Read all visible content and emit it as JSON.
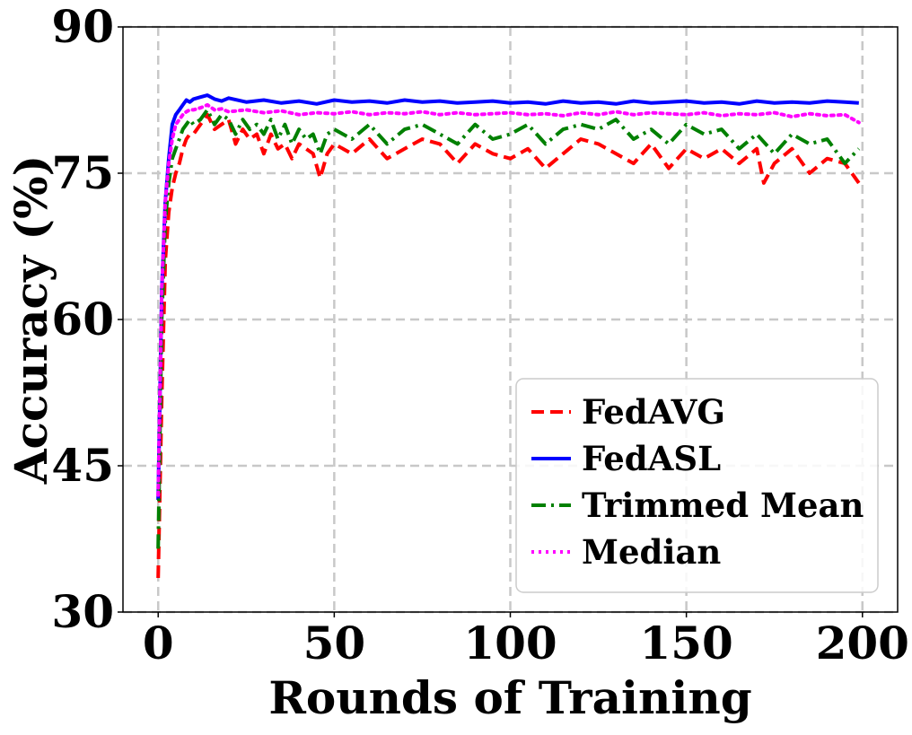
{
  "chart_data": {
    "type": "line",
    "xlabel": "Rounds of Training",
    "ylabel": "Accuracy (%)",
    "xlim": [
      -10,
      210
    ],
    "ylim": [
      30,
      90
    ],
    "xticks": [
      0,
      50,
      100,
      150,
      200
    ],
    "yticks": [
      30,
      45,
      60,
      75,
      90
    ],
    "xtick_labels": [
      "0",
      "50",
      "100",
      "150",
      "200"
    ],
    "ytick_labels": [
      "30",
      "45",
      "60",
      "75",
      "90"
    ],
    "grid": true,
    "legend_position": "lower-right",
    "series": [
      {
        "name": "FedAVG",
        "color": "#ff0000",
        "style": "dashed",
        "x": [
          0,
          1,
          2,
          3,
          4,
          5,
          6,
          7,
          8,
          9,
          10,
          12,
          14,
          16,
          18,
          20,
          22,
          24,
          26,
          28,
          30,
          32,
          34,
          36,
          38,
          40,
          42,
          44,
          46,
          48,
          50,
          55,
          60,
          65,
          70,
          75,
          80,
          85,
          90,
          95,
          100,
          105,
          110,
          115,
          120,
          125,
          130,
          135,
          140,
          145,
          150,
          155,
          160,
          165,
          170,
          172,
          175,
          180,
          185,
          190,
          195,
          199
        ],
        "y": [
          33.5,
          52,
          66,
          71,
          73.5,
          75,
          76,
          77.5,
          78.5,
          79,
          79,
          80,
          81,
          79.5,
          80,
          80.5,
          78,
          79.5,
          78.5,
          79,
          77,
          79,
          77.5,
          78,
          76.5,
          78,
          77.5,
          77,
          74.5,
          77,
          78,
          77,
          78.5,
          76.5,
          77.5,
          78.5,
          78,
          76,
          78,
          77,
          76.5,
          77.5,
          75.5,
          77,
          78.5,
          78,
          77,
          76,
          78,
          75.5,
          77.5,
          76.5,
          77.5,
          76,
          77.5,
          74,
          76,
          77.5,
          75,
          76.5,
          76,
          74
        ]
      },
      {
        "name": "FedASL",
        "color": "#0000ff",
        "style": "solid",
        "x": [
          0,
          1,
          2,
          3,
          4,
          5,
          6,
          7,
          8,
          9,
          10,
          12,
          14,
          16,
          18,
          20,
          25,
          30,
          35,
          40,
          45,
          50,
          55,
          60,
          65,
          70,
          75,
          80,
          85,
          90,
          95,
          100,
          105,
          110,
          115,
          120,
          125,
          130,
          135,
          140,
          145,
          150,
          155,
          160,
          165,
          170,
          175,
          180,
          185,
          190,
          195,
          199
        ],
        "y": [
          41.5,
          63,
          72,
          76.5,
          80,
          81,
          81.5,
          82,
          82.5,
          82.3,
          82.6,
          82.8,
          83,
          82.6,
          82.4,
          82.7,
          82.3,
          82.5,
          82.2,
          82.4,
          82.1,
          82.5,
          82.3,
          82.4,
          82.2,
          82.5,
          82.3,
          82.4,
          82.2,
          82.3,
          82.4,
          82.2,
          82.3,
          82.1,
          82.4,
          82.2,
          82.3,
          82.1,
          82.4,
          82.2,
          82.3,
          82.4,
          82.2,
          82.3,
          82.1,
          82.4,
          82.2,
          82.3,
          82.2,
          82.4,
          82.3,
          82.2
        ]
      },
      {
        "name": "Trimmed Mean",
        "color": "#008000",
        "style": "dashdot",
        "x": [
          0,
          1,
          2,
          3,
          4,
          5,
          6,
          7,
          8,
          9,
          10,
          12,
          14,
          16,
          18,
          20,
          22,
          24,
          26,
          28,
          30,
          32,
          34,
          36,
          38,
          40,
          42,
          44,
          46,
          48,
          50,
          55,
          60,
          65,
          70,
          75,
          80,
          85,
          90,
          95,
          100,
          105,
          110,
          115,
          120,
          125,
          130,
          135,
          140,
          145,
          150,
          155,
          160,
          165,
          170,
          175,
          180,
          185,
          190,
          195,
          199
        ],
        "y": [
          36.5,
          60,
          70,
          74,
          76.5,
          77.5,
          78.5,
          79.5,
          80,
          80.5,
          80,
          80.5,
          81.5,
          80,
          81,
          80.5,
          79,
          80.5,
          79.5,
          80,
          79,
          80.5,
          78.5,
          80,
          78,
          79.5,
          78.5,
          79,
          77,
          79,
          79.5,
          78.5,
          80,
          78,
          79.5,
          80,
          79,
          78,
          80,
          78.5,
          79,
          80,
          78,
          79.5,
          80,
          79.5,
          80.5,
          78.5,
          79.5,
          78,
          80,
          79,
          79.5,
          77.5,
          79,
          77,
          79,
          78,
          78.5,
          76,
          77.5
        ]
      },
      {
        "name": "Median",
        "color": "#ff00ff",
        "style": "dotted",
        "x": [
          0,
          1,
          2,
          3,
          4,
          5,
          6,
          7,
          8,
          9,
          10,
          12,
          14,
          16,
          18,
          20,
          25,
          30,
          35,
          40,
          45,
          50,
          55,
          60,
          65,
          70,
          75,
          80,
          85,
          90,
          95,
          100,
          105,
          110,
          115,
          120,
          125,
          130,
          135,
          140,
          145,
          150,
          155,
          160,
          165,
          170,
          175,
          180,
          185,
          190,
          195,
          199
        ],
        "y": [
          42,
          63,
          72,
          76,
          78.5,
          80,
          80.5,
          81,
          81.3,
          81.5,
          81.5,
          81.7,
          82,
          81.5,
          81.6,
          81.3,
          81.5,
          81.2,
          81.4,
          81,
          81.2,
          81.1,
          81.3,
          81,
          81.2,
          81.1,
          81.3,
          81,
          81.2,
          81,
          81.1,
          81.2,
          81,
          81.1,
          80.9,
          81.2,
          81,
          81.3,
          81,
          81.2,
          81.1,
          81,
          81.2,
          80.9,
          81.1,
          81,
          81.2,
          80.8,
          81.1,
          80.9,
          81,
          80.2
        ]
      }
    ]
  }
}
